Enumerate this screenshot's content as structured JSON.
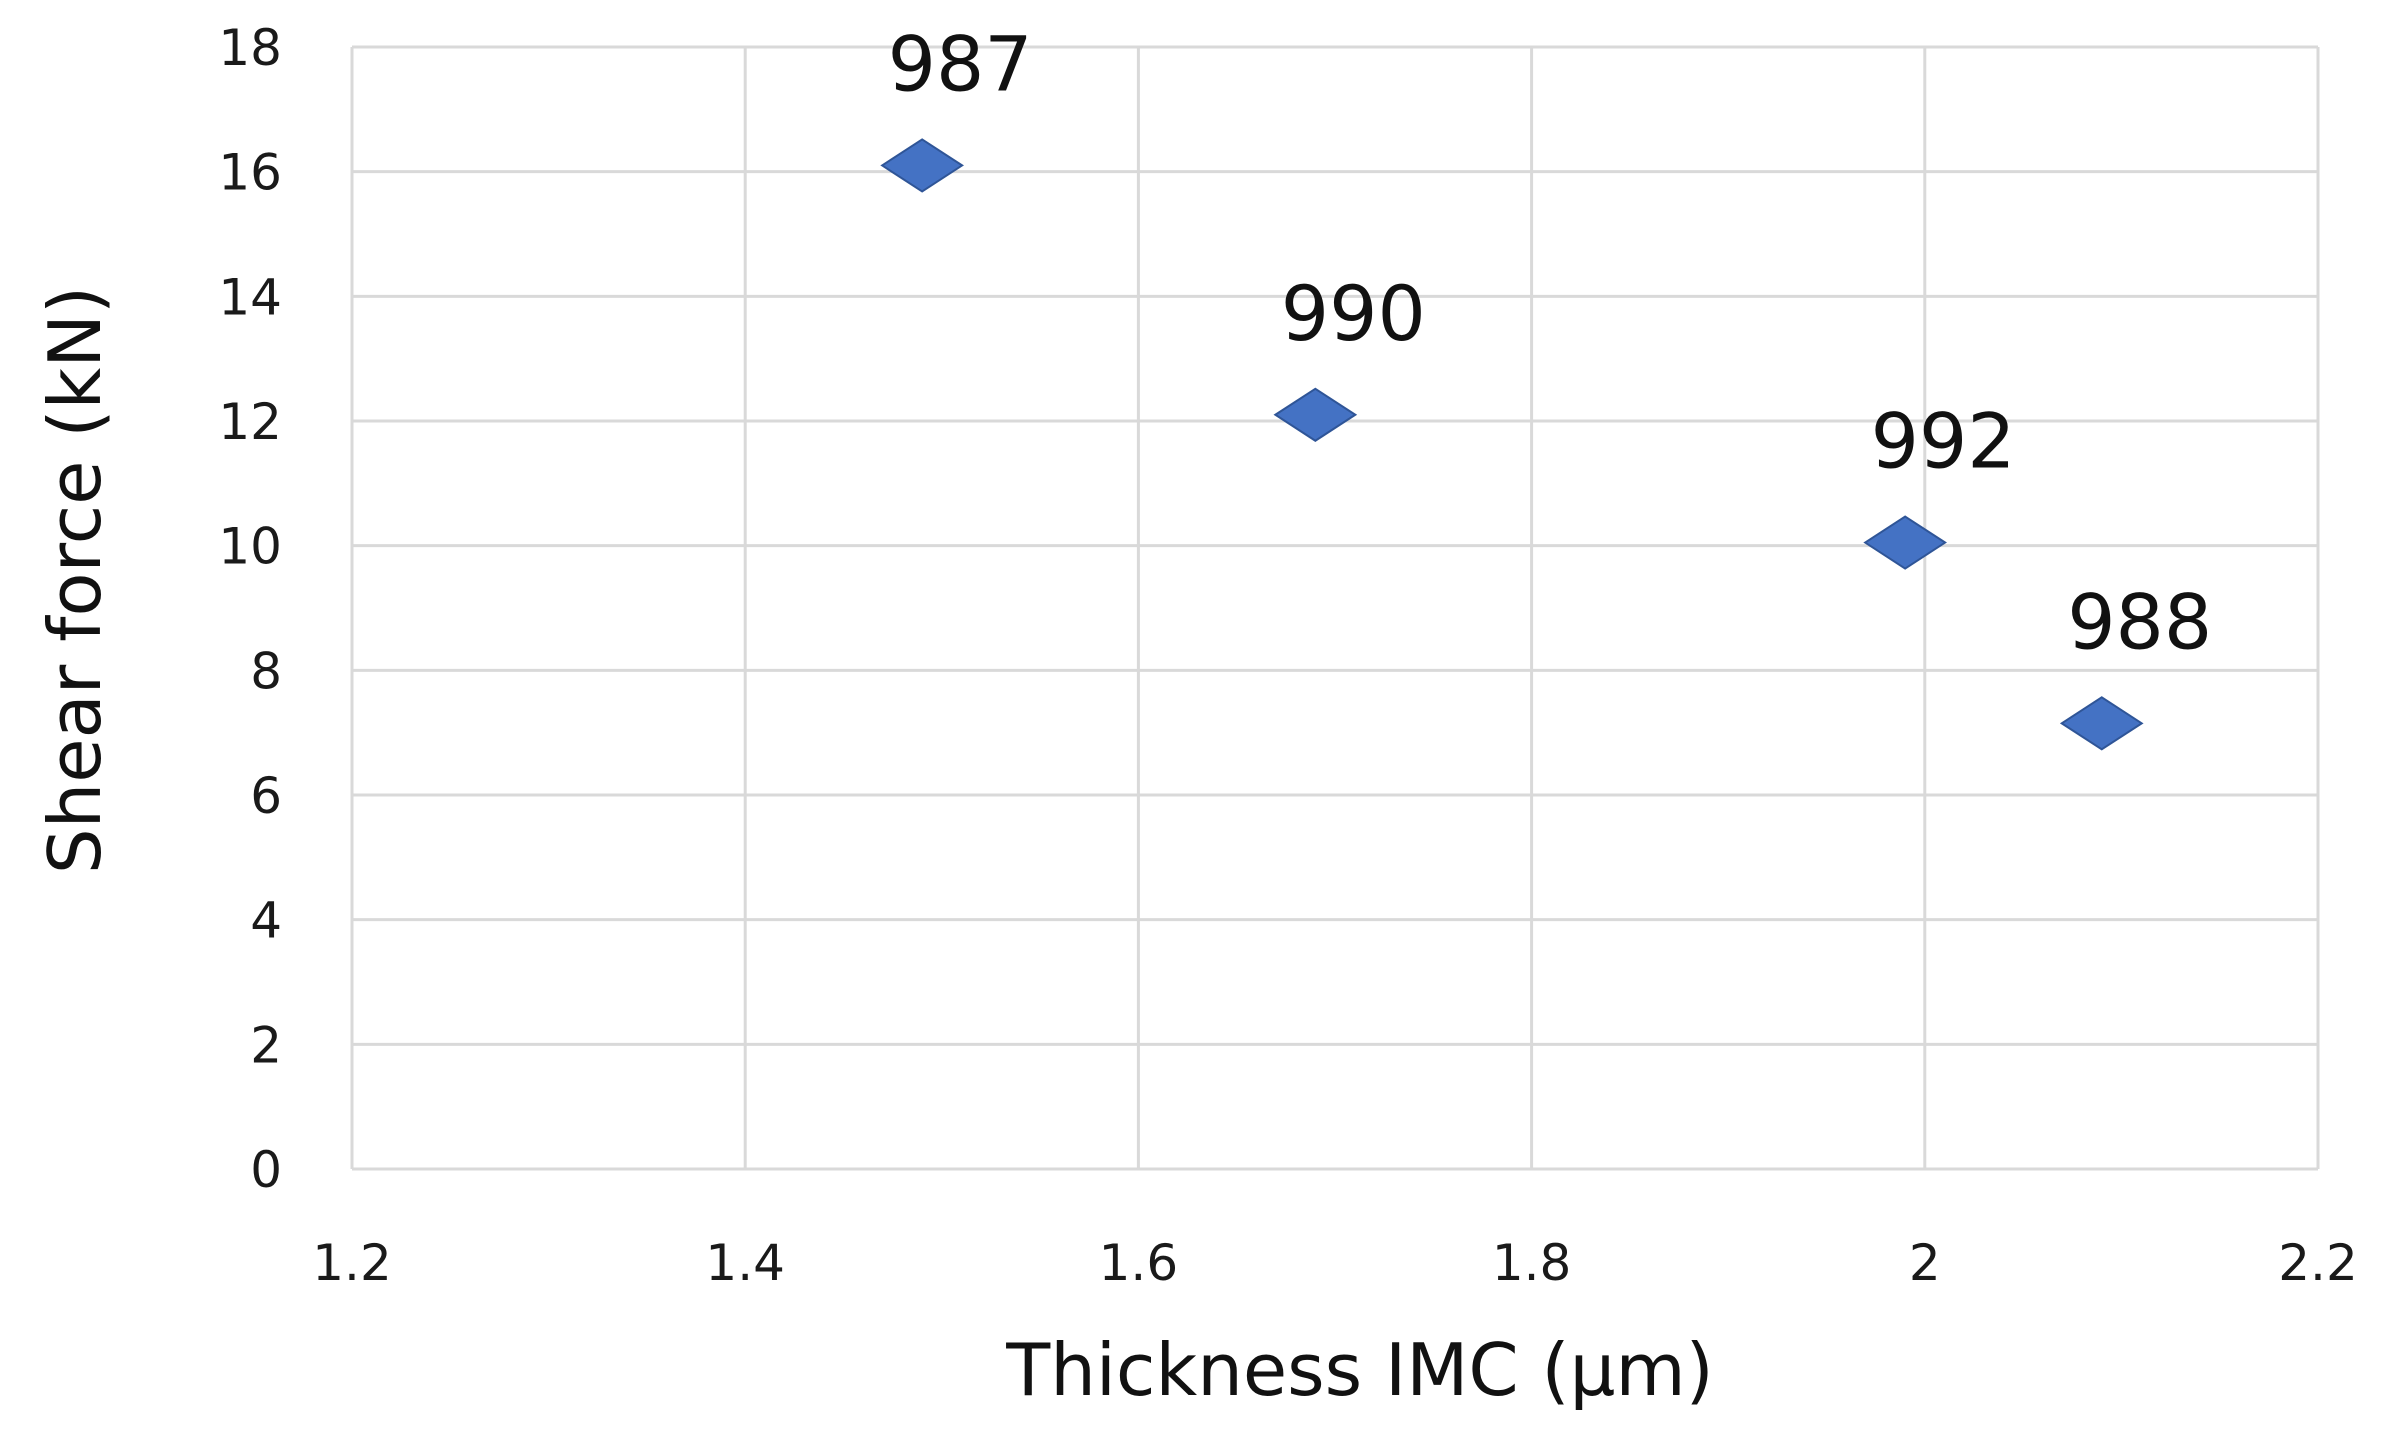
{
  "chart_data": {
    "type": "scatter",
    "title": "",
    "xlabel": "Thickness IMC (µm)",
    "ylabel": "Shear force (kN)",
    "xlim": [
      1.2,
      2.2
    ],
    "ylim": [
      0,
      18
    ],
    "x_ticks": [
      {
        "value": 1.2,
        "label": "1.2"
      },
      {
        "value": 1.4,
        "label": "1.4"
      },
      {
        "value": 1.6,
        "label": "1.6"
      },
      {
        "value": 1.8,
        "label": "1.8"
      },
      {
        "value": 2.0,
        "label": "2"
      },
      {
        "value": 2.2,
        "label": "2.2"
      }
    ],
    "y_ticks": [
      {
        "value": 0,
        "label": "0"
      },
      {
        "value": 2,
        "label": "2"
      },
      {
        "value": 4,
        "label": "4"
      },
      {
        "value": 6,
        "label": "6"
      },
      {
        "value": 8,
        "label": "8"
      },
      {
        "value": 10,
        "label": "10"
      },
      {
        "value": 12,
        "label": "12"
      },
      {
        "value": 14,
        "label": "14"
      },
      {
        "value": 16,
        "label": "16"
      },
      {
        "value": 18,
        "label": "18"
      }
    ],
    "grid": true,
    "legend": "none",
    "marker_shape": "diamond",
    "series": [
      {
        "color": "#4472c4",
        "points": [
          {
            "x": 1.49,
            "y": 16.1,
            "label": "987"
          },
          {
            "x": 1.69,
            "y": 12.1,
            "label": "990"
          },
          {
            "x": 1.99,
            "y": 10.05,
            "label": "992"
          },
          {
            "x": 2.09,
            "y": 7.15,
            "label": "988"
          }
        ]
      }
    ]
  }
}
